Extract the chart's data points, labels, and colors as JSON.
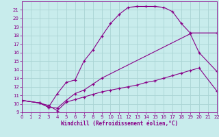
{
  "background_color": "#c8ecec",
  "grid_color": "#aad4d4",
  "line_color": "#880088",
  "xlabel": "Windchill (Refroidissement éolien,°C)",
  "xlim": [
    0,
    22
  ],
  "ylim": [
    9,
    22
  ],
  "xticks": [
    0,
    1,
    2,
    3,
    4,
    5,
    6,
    7,
    8,
    9,
    10,
    11,
    12,
    13,
    14,
    15,
    16,
    17,
    18,
    19,
    20,
    21,
    22
  ],
  "yticks": [
    9,
    10,
    11,
    12,
    13,
    14,
    15,
    16,
    17,
    18,
    19,
    20,
    21
  ],
  "line1_x": [
    0,
    2,
    3,
    4,
    5,
    6,
    7,
    8,
    9,
    10,
    11,
    12,
    13,
    14,
    15,
    16,
    17,
    18,
    19,
    22
  ],
  "line1_y": [
    10.4,
    10.1,
    9.6,
    11.2,
    12.5,
    12.8,
    15.0,
    16.3,
    17.9,
    19.4,
    20.5,
    21.3,
    21.4,
    21.4,
    21.4,
    21.3,
    20.8,
    19.4,
    18.3,
    18.3
  ],
  "line2_x": [
    0,
    2,
    3,
    4,
    5,
    6,
    7,
    8,
    9,
    19,
    20,
    22
  ],
  "line2_y": [
    10.4,
    10.1,
    9.6,
    9.5,
    10.4,
    11.2,
    11.6,
    12.3,
    13.0,
    18.2,
    16.0,
    13.8
  ],
  "line3_x": [
    0,
    2,
    3,
    4,
    5,
    6,
    7,
    8,
    9,
    10,
    11,
    12,
    13,
    14,
    15,
    16,
    17,
    18,
    19,
    20,
    22
  ],
  "line3_y": [
    10.4,
    10.1,
    9.8,
    9.2,
    10.2,
    10.5,
    10.8,
    11.1,
    11.4,
    11.6,
    11.8,
    12.0,
    12.2,
    12.5,
    12.7,
    13.0,
    13.3,
    13.6,
    13.9,
    14.2,
    11.5
  ]
}
